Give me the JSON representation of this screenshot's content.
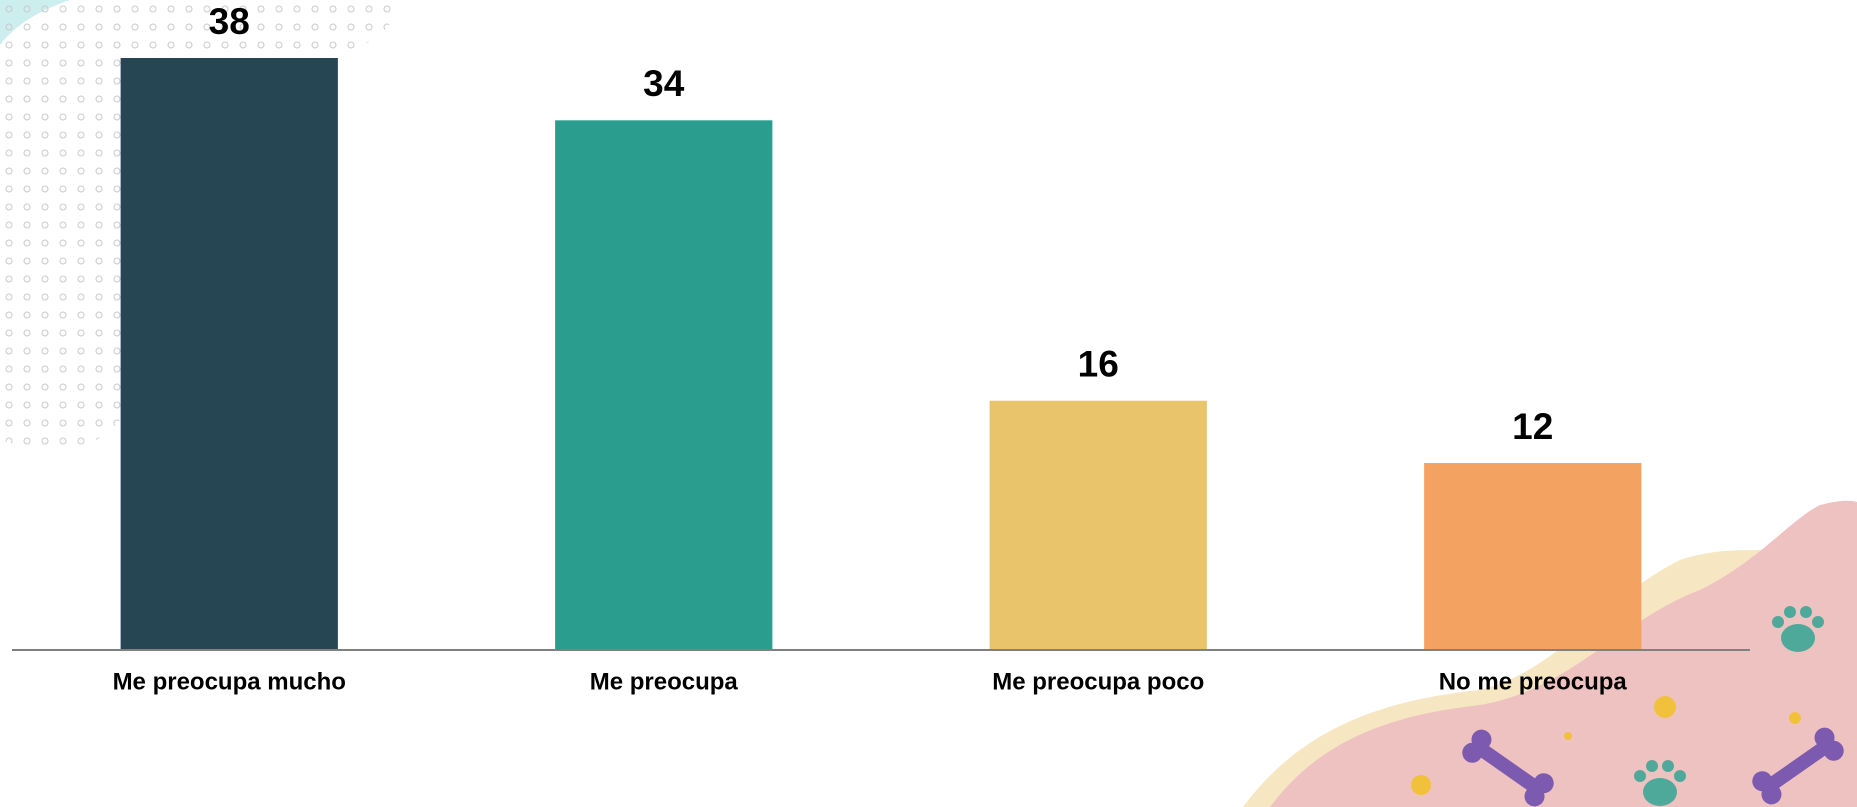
{
  "chart_data": {
    "type": "bar",
    "categories": [
      "Me preocupa mucho",
      "Me preocupa",
      "Me preocupa poco",
      "No me preocupa"
    ],
    "values": [
      38,
      34,
      16,
      12
    ],
    "colors": [
      "#264653",
      "#2a9d8f",
      "#e9c46a",
      "#f4a261"
    ],
    "ylim": [
      0,
      38
    ]
  }
}
